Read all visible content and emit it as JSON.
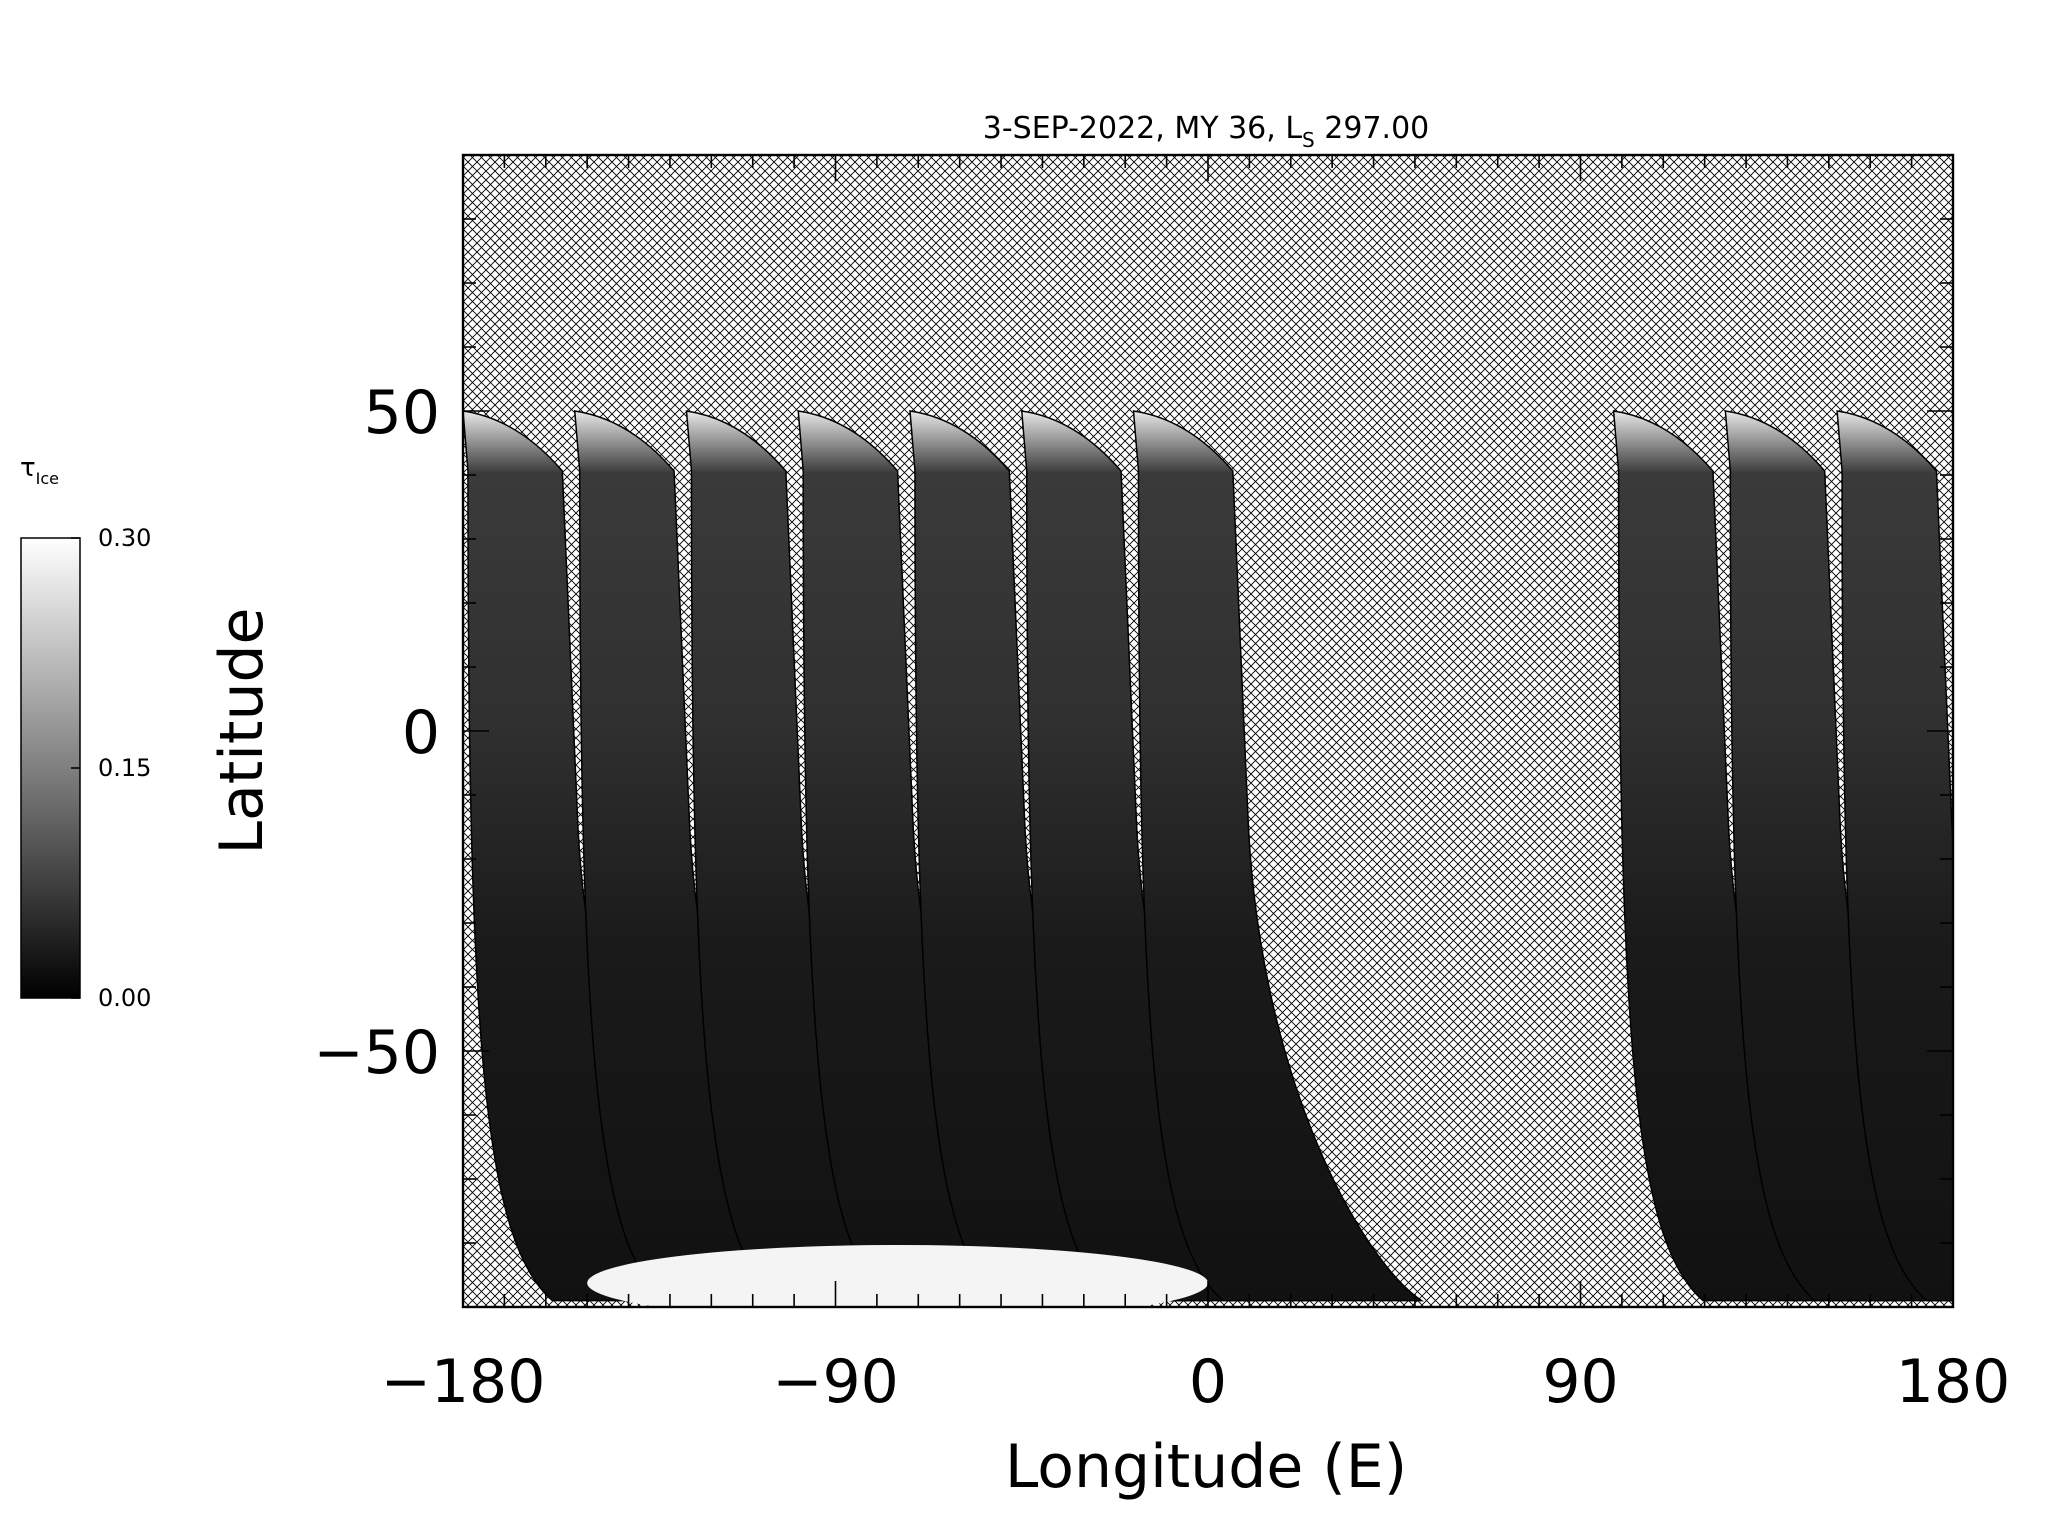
{
  "chart_data": {
    "type": "heatmap",
    "title_main": "3-SEP-2022, MY 36,  L",
    "title_sub": "S",
    "title_value": " 297.00",
    "xlabel": "Longitude (E)",
    "ylabel": "Latitude",
    "xlim": [
      -180,
      180
    ],
    "ylim": [
      -90,
      90
    ],
    "xticks": [
      -180,
      -90,
      0,
      90,
      180
    ],
    "xtick_labels": [
      "−180",
      "−90",
      "0",
      "90",
      "180"
    ],
    "yticks": [
      -50,
      0,
      50
    ],
    "ytick_labels": [
      "−50",
      "0",
      "50"
    ],
    "missing_data": "crosshatch",
    "colorbar": {
      "label": "τ",
      "label_sub": "Ice",
      "min": 0.0,
      "max": 0.3,
      "tick_values": [
        0.0,
        0.15,
        0.3
      ],
      "tick_labels": [
        "0.00",
        "0.15",
        "0.30"
      ],
      "colormap": "grayscale",
      "low_color": "#000000",
      "high_color": "#ffffff"
    },
    "swaths": [
      {
        "lon_start": -180,
        "lon_end": -156,
        "lat_top": 50,
        "lat_bottom": -89,
        "mean_value": 0.06
      },
      {
        "lon_start": -153,
        "lon_end": -129,
        "lat_top": 50,
        "lat_bottom": -89,
        "mean_value": 0.07
      },
      {
        "lon_start": -126,
        "lon_end": -102,
        "lat_top": 50,
        "lat_bottom": -89,
        "mean_value": 0.07
      },
      {
        "lon_start": -99,
        "lon_end": -75,
        "lat_top": 50,
        "lat_bottom": -89,
        "mean_value": 0.06
      },
      {
        "lon_start": -72,
        "lon_end": -48,
        "lat_top": 50,
        "lat_bottom": -89,
        "mean_value": 0.05
      },
      {
        "lon_start": -45,
        "lon_end": -21,
        "lat_top": 50,
        "lat_bottom": -89,
        "mean_value": 0.05
      },
      {
        "lon_start": -18,
        "lon_end": 6,
        "lat_top": 50,
        "lat_bottom": -89,
        "mean_value": 0.05
      },
      {
        "lon_start": 98,
        "lon_end": 122,
        "lat_top": 50,
        "lat_bottom": -89,
        "mean_value": 0.05
      },
      {
        "lon_start": 125,
        "lon_end": 149,
        "lat_top": 50,
        "lat_bottom": -89,
        "mean_value": 0.05
      },
      {
        "lon_start": 152,
        "lon_end": 176,
        "lat_top": 50,
        "lat_bottom": -89,
        "mean_value": 0.05
      }
    ],
    "polar_cap": {
      "lon_start": -150,
      "lon_end": 0,
      "lat_top": -80,
      "lat_bottom": -90,
      "value": 0.3
    }
  }
}
